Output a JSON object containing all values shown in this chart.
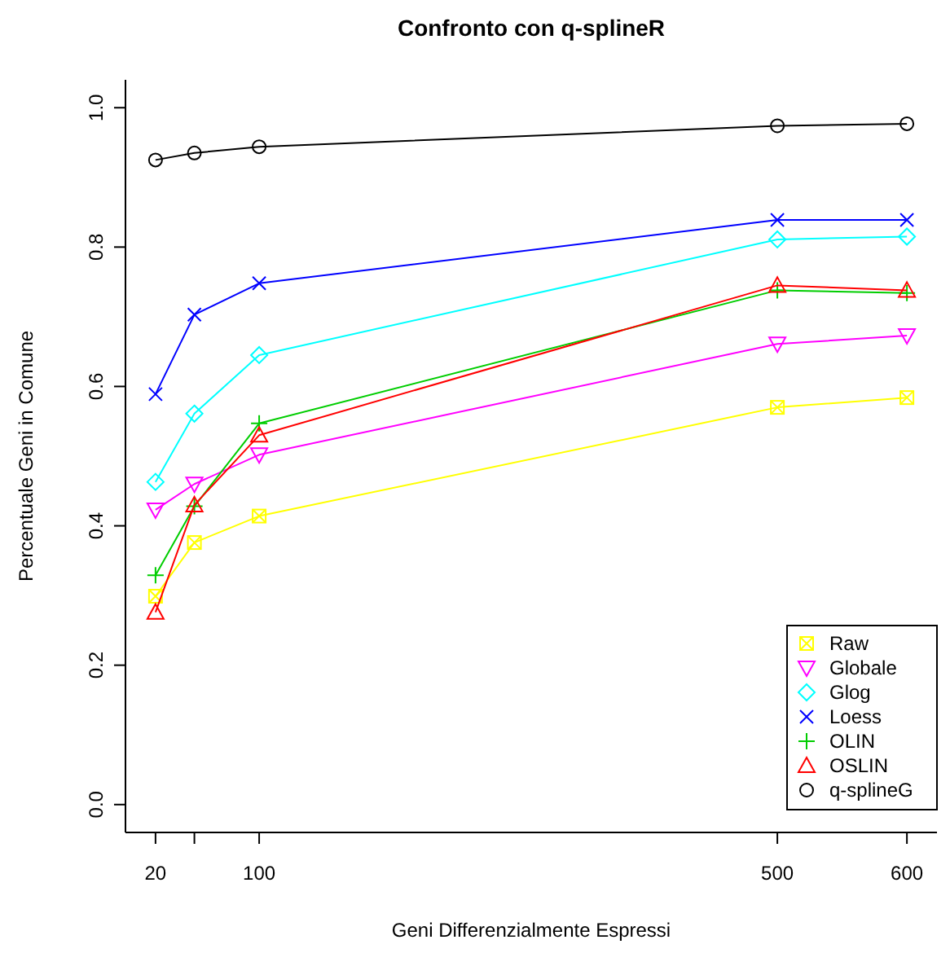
{
  "chart_data": {
    "type": "line",
    "title": "Confronto con q-splineR",
    "xlabel": "Geni Differenzialmente Espressi",
    "ylabel": "Percentuale Geni in Comune",
    "x": [
      20,
      50,
      100,
      500,
      600
    ],
    "xlim": [
      -3.2,
      623.2
    ],
    "xticks": [
      20,
      {
        "value": 50,
        "label": null
      },
      100,
      500,
      600
    ],
    "ylim": [
      -0.04,
      1.04
    ],
    "yticks": [
      {
        "value": 0,
        "label": "0.0"
      },
      0.2,
      0.4,
      0.6,
      0.8,
      {
        "value": 1,
        "label": "1.0"
      }
    ],
    "grid": false,
    "legend": "bottom right",
    "series": [
      {
        "name": "Raw",
        "color": "#ffff00",
        "marker": "square",
        "values": [
          0.299,
          0.376,
          0.414,
          0.57,
          0.584
        ]
      },
      {
        "name": "Globale",
        "color": "#ff00ff",
        "marker": "triangle-down",
        "values": [
          0.423,
          0.46,
          0.502,
          0.661,
          0.673
        ]
      },
      {
        "name": "Glog",
        "color": "#00ffff",
        "marker": "diamond",
        "values": [
          0.463,
          0.561,
          0.645,
          0.811,
          0.815
        ]
      },
      {
        "name": "Loess",
        "color": "#0000ff",
        "marker": "x",
        "values": [
          0.589,
          0.703,
          0.748,
          0.839,
          0.839
        ]
      },
      {
        "name": "OLIN",
        "color": "#00cd00",
        "marker": "cross",
        "values": [
          0.329,
          0.428,
          0.547,
          0.738,
          0.734
        ]
      },
      {
        "name": "OSLIN",
        "color": "#ff0000",
        "marker": "triangle",
        "values": [
          0.276,
          0.43,
          0.53,
          0.745,
          0.738
        ]
      },
      {
        "name": "q-splineG",
        "color": "#000000",
        "marker": "circle",
        "values": [
          0.925,
          0.935,
          0.944,
          0.974,
          0.977
        ]
      }
    ]
  }
}
